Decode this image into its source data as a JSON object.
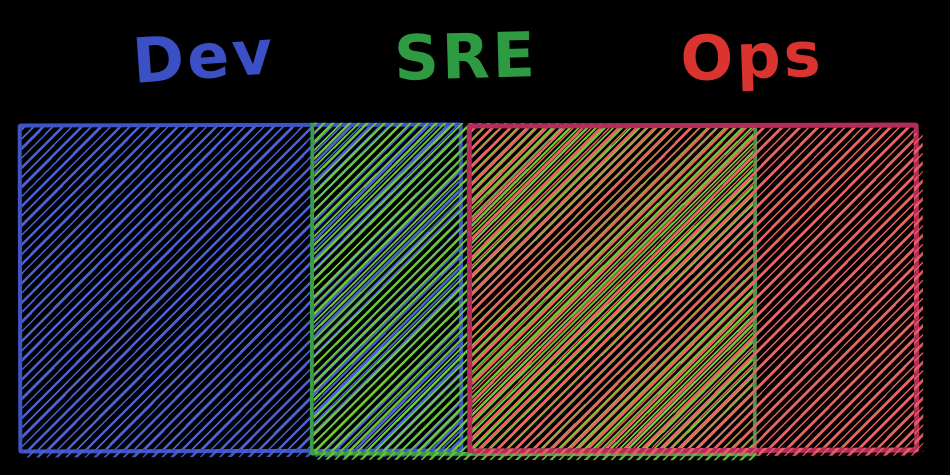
{
  "diagram": {
    "type": "venn-overlap-bars",
    "background": "#000000",
    "labels": [
      {
        "text": "Dev",
        "color": "#3b50c5"
      },
      {
        "text": "SRE",
        "color": "#2e9b43"
      },
      {
        "text": "Ops",
        "color": "#d93430"
      }
    ],
    "sets": [
      {
        "name": "Dev",
        "border_color": "#3f55c5",
        "hatch_color": "#4a62d2"
      },
      {
        "name": "SRE",
        "border_color": "#3a9b4c",
        "hatch_color": "#6cc836"
      },
      {
        "name": "Ops",
        "border_color": "#b52b5e",
        "hatch_color": "#ea6360"
      }
    ],
    "overlaps": [
      "Dev and SRE overlap (blue + green cross-hatch)",
      "SRE and Ops overlap (green + red cross-hatch)"
    ]
  }
}
